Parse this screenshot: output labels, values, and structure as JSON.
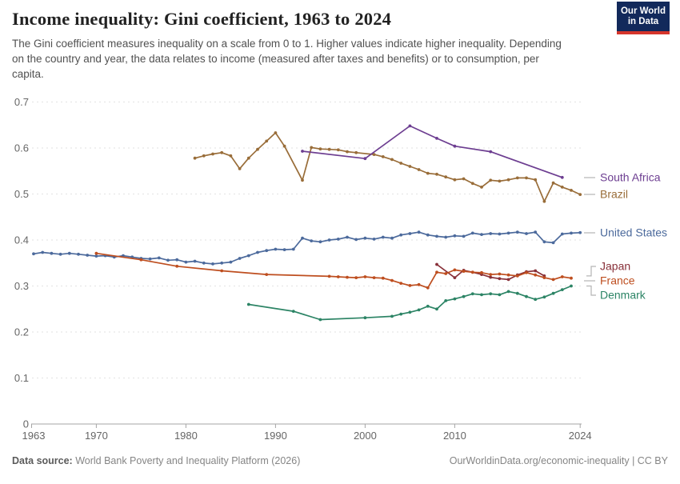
{
  "header": {
    "title": "Income inequality: Gini coefficient, 1963 to 2024",
    "subtitle": "The Gini coefficient measures inequality on a scale from 0 to 1. Higher values indicate higher inequality. Depending on the country and year, the data relates to income (measured after taxes and benefits) or to consumption, per capita.",
    "logo": {
      "line1": "Our World",
      "line2": "in Data",
      "bg_color": "#12295B",
      "stripe_color": "#D5352B"
    }
  },
  "footer": {
    "source_label": "Data source:",
    "source_text": " World Bank Poverty and Inequality Platform (2026)",
    "right_text": "OurWorldinData.org/economic-inequality | CC BY"
  },
  "chart_data": {
    "type": "line",
    "title": "Income inequality: Gini coefficient, 1963 to 2024",
    "xlabel": "",
    "ylabel": "",
    "xlim": [
      1963,
      2024
    ],
    "ylim": [
      0,
      0.7
    ],
    "x_ticks": [
      1963,
      1970,
      1980,
      1990,
      2000,
      2010,
      2024
    ],
    "y_ticks": [
      0,
      0.1,
      0.2,
      0.3,
      0.4,
      0.5,
      0.6,
      0.7
    ],
    "grid": "horizontal-dashed",
    "legend_position": "right",
    "axis_color": "#A5A5A5",
    "grid_color": "#E2E2E2",
    "tick_label_color": "#666666",
    "connector_color": "#B5B5B5",
    "series": [
      {
        "name": "Brazil",
        "color": "#996D39",
        "points": [
          [
            1981,
            0.578
          ],
          [
            1982,
            0.583
          ],
          [
            1983,
            0.587
          ],
          [
            1984,
            0.59
          ],
          [
            1985,
            0.583
          ],
          [
            1986,
            0.555
          ],
          [
            1987,
            0.578
          ],
          [
            1988,
            0.597
          ],
          [
            1989,
            0.615
          ],
          [
            1990,
            0.633
          ],
          [
            1991,
            0.604
          ],
          [
            1993,
            0.53
          ],
          [
            1994,
            0.601
          ],
          [
            1995,
            0.598
          ],
          [
            1996,
            0.597
          ],
          [
            1997,
            0.596
          ],
          [
            1998,
            0.592
          ],
          [
            1999,
            0.59
          ],
          [
            2001,
            0.586
          ],
          [
            2002,
            0.581
          ],
          [
            2003,
            0.575
          ],
          [
            2004,
            0.567
          ],
          [
            2005,
            0.56
          ],
          [
            2006,
            0.553
          ],
          [
            2007,
            0.545
          ],
          [
            2008,
            0.543
          ],
          [
            2009,
            0.537
          ],
          [
            2010,
            0.531
          ],
          [
            2011,
            0.533
          ],
          [
            2012,
            0.523
          ],
          [
            2013,
            0.515
          ],
          [
            2014,
            0.53
          ],
          [
            2015,
            0.528
          ],
          [
            2016,
            0.531
          ],
          [
            2017,
            0.535
          ],
          [
            2018,
            0.535
          ],
          [
            2019,
            0.531
          ],
          [
            2020,
            0.484
          ],
          [
            2021,
            0.524
          ],
          [
            2022,
            0.515
          ],
          [
            2023,
            0.508
          ],
          [
            2024,
            0.499
          ]
        ]
      },
      {
        "name": "South Africa",
        "color": "#6D3E91",
        "points": [
          [
            1993,
            0.593
          ],
          [
            2000,
            0.577
          ],
          [
            2005,
            0.648
          ],
          [
            2008,
            0.621
          ],
          [
            2010,
            0.604
          ],
          [
            2014,
            0.592
          ],
          [
            2022,
            0.536
          ]
        ]
      },
      {
        "name": "United States",
        "color": "#4C6A9C",
        "points": [
          [
            1963,
            0.37
          ],
          [
            1964,
            0.373
          ],
          [
            1965,
            0.371
          ],
          [
            1966,
            0.369
          ],
          [
            1967,
            0.371
          ],
          [
            1968,
            0.369
          ],
          [
            1969,
            0.367
          ],
          [
            1970,
            0.365
          ],
          [
            1971,
            0.366
          ],
          [
            1972,
            0.363
          ],
          [
            1973,
            0.366
          ],
          [
            1974,
            0.363
          ],
          [
            1975,
            0.36
          ],
          [
            1976,
            0.359
          ],
          [
            1977,
            0.361
          ],
          [
            1978,
            0.356
          ],
          [
            1979,
            0.357
          ],
          [
            1980,
            0.352
          ],
          [
            1981,
            0.354
          ],
          [
            1982,
            0.35
          ],
          [
            1983,
            0.348
          ],
          [
            1984,
            0.35
          ],
          [
            1985,
            0.352
          ],
          [
            1986,
            0.36
          ],
          [
            1987,
            0.366
          ],
          [
            1988,
            0.373
          ],
          [
            1989,
            0.377
          ],
          [
            1990,
            0.38
          ],
          [
            1991,
            0.379
          ],
          [
            1992,
            0.38
          ],
          [
            1993,
            0.404
          ],
          [
            1994,
            0.398
          ],
          [
            1995,
            0.396
          ],
          [
            1996,
            0.4
          ],
          [
            1997,
            0.402
          ],
          [
            1998,
            0.406
          ],
          [
            1999,
            0.401
          ],
          [
            2000,
            0.404
          ],
          [
            2001,
            0.402
          ],
          [
            2002,
            0.406
          ],
          [
            2003,
            0.404
          ],
          [
            2004,
            0.411
          ],
          [
            2005,
            0.414
          ],
          [
            2006,
            0.417
          ],
          [
            2007,
            0.411
          ],
          [
            2008,
            0.408
          ],
          [
            2009,
            0.406
          ],
          [
            2010,
            0.409
          ],
          [
            2011,
            0.408
          ],
          [
            2012,
            0.415
          ],
          [
            2013,
            0.412
          ],
          [
            2014,
            0.414
          ],
          [
            2015,
            0.413
          ],
          [
            2016,
            0.415
          ],
          [
            2017,
            0.417
          ],
          [
            2018,
            0.414
          ],
          [
            2019,
            0.417
          ],
          [
            2020,
            0.396
          ],
          [
            2021,
            0.394
          ],
          [
            2022,
            0.413
          ],
          [
            2023,
            0.415
          ],
          [
            2024,
            0.416
          ]
        ]
      },
      {
        "name": "Japan",
        "color": "#883039",
        "points": [
          [
            2008,
            0.347
          ],
          [
            2010,
            0.318
          ],
          [
            2011,
            0.334
          ],
          [
            2012,
            0.33
          ],
          [
            2013,
            0.325
          ],
          [
            2014,
            0.319
          ],
          [
            2015,
            0.316
          ],
          [
            2016,
            0.314
          ],
          [
            2017,
            0.324
          ],
          [
            2018,
            0.331
          ],
          [
            2019,
            0.333
          ],
          [
            2020,
            0.322
          ]
        ]
      },
      {
        "name": "France",
        "color": "#BE4E1F",
        "points": [
          [
            1970,
            0.371
          ],
          [
            1975,
            0.357
          ],
          [
            1979,
            0.343
          ],
          [
            1984,
            0.333
          ],
          [
            1989,
            0.325
          ],
          [
            1996,
            0.321
          ],
          [
            1997,
            0.32
          ],
          [
            1998,
            0.319
          ],
          [
            1999,
            0.318
          ],
          [
            2000,
            0.32
          ],
          [
            2001,
            0.318
          ],
          [
            2002,
            0.317
          ],
          [
            2003,
            0.312
          ],
          [
            2004,
            0.306
          ],
          [
            2005,
            0.301
          ],
          [
            2006,
            0.303
          ],
          [
            2007,
            0.296
          ],
          [
            2008,
            0.33
          ],
          [
            2009,
            0.327
          ],
          [
            2010,
            0.335
          ],
          [
            2011,
            0.332
          ],
          [
            2012,
            0.33
          ],
          [
            2013,
            0.329
          ],
          [
            2014,
            0.325
          ],
          [
            2015,
            0.326
          ],
          [
            2016,
            0.324
          ],
          [
            2017,
            0.322
          ],
          [
            2018,
            0.329
          ],
          [
            2019,
            0.324
          ],
          [
            2020,
            0.318
          ],
          [
            2021,
            0.314
          ],
          [
            2022,
            0.32
          ],
          [
            2023,
            0.317
          ]
        ]
      },
      {
        "name": "Denmark",
        "color": "#2C8465",
        "points": [
          [
            1987,
            0.26
          ],
          [
            1992,
            0.245
          ],
          [
            1995,
            0.227
          ],
          [
            2000,
            0.231
          ],
          [
            2003,
            0.234
          ],
          [
            2004,
            0.239
          ],
          [
            2005,
            0.243
          ],
          [
            2006,
            0.248
          ],
          [
            2007,
            0.256
          ],
          [
            2008,
            0.25
          ],
          [
            2009,
            0.268
          ],
          [
            2010,
            0.272
          ],
          [
            2011,
            0.277
          ],
          [
            2012,
            0.283
          ],
          [
            2013,
            0.281
          ],
          [
            2014,
            0.283
          ],
          [
            2015,
            0.281
          ],
          [
            2016,
            0.288
          ],
          [
            2017,
            0.284
          ],
          [
            2018,
            0.277
          ],
          [
            2019,
            0.271
          ],
          [
            2020,
            0.276
          ],
          [
            2021,
            0.284
          ],
          [
            2022,
            0.292
          ],
          [
            2023,
            0.3
          ]
        ]
      }
    ]
  }
}
